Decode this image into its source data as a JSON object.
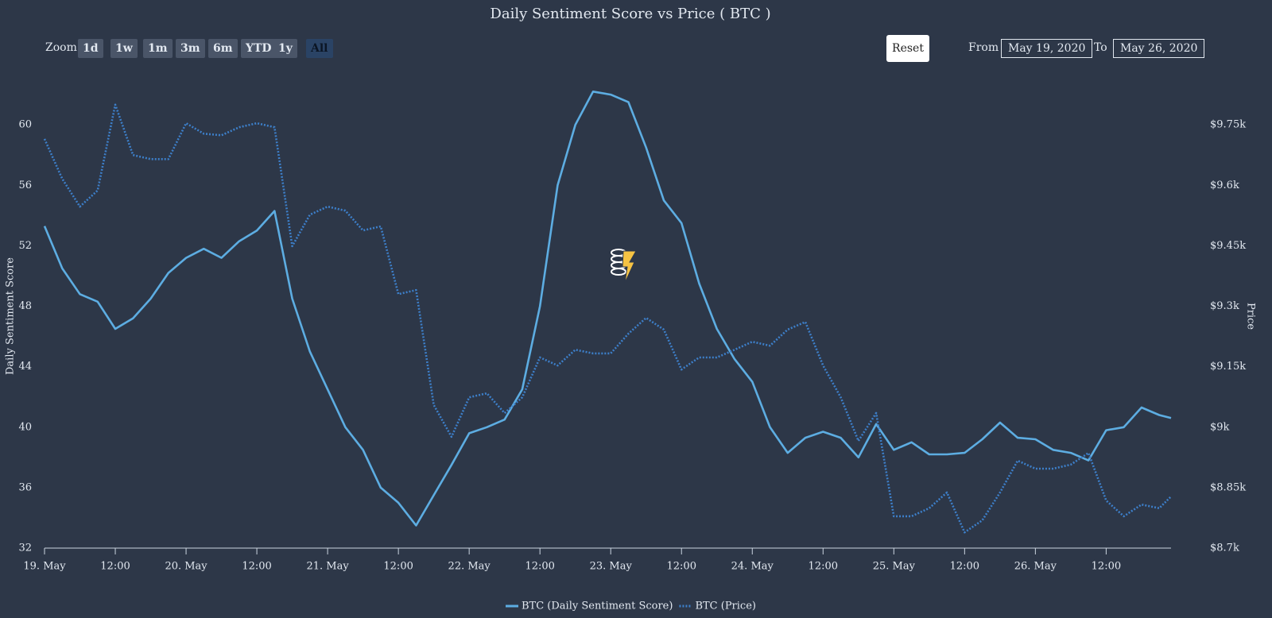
{
  "ui": {
    "zoom_label": "Zoom",
    "zoom_buttons": [
      "1d",
      "1w",
      "1m",
      "3m",
      "6m",
      "YTD",
      "1y",
      "All"
    ],
    "reset": "Reset",
    "from_label": "From",
    "from_value": "May 19, 2020",
    "to_label": "To",
    "to_value": "May 26, 2020"
  },
  "chart_data": {
    "type": "line",
    "title": "Daily Sentiment Score vs Price ( BTC )",
    "y_label": "Daily Sentiment Score",
    "y2_label": "Price",
    "x": [
      "2020-05-19T00:00",
      "2020-05-19T03:00",
      "2020-05-19T06:00",
      "2020-05-19T09:00",
      "2020-05-19T12:00",
      "2020-05-19T15:00",
      "2020-05-19T18:00",
      "2020-05-19T21:00",
      "2020-05-20T00:00",
      "2020-05-20T03:00",
      "2020-05-20T06:00",
      "2020-05-20T09:00",
      "2020-05-20T12:00",
      "2020-05-20T15:00",
      "2020-05-20T18:00",
      "2020-05-20T21:00",
      "2020-05-21T00:00",
      "2020-05-21T03:00",
      "2020-05-21T06:00",
      "2020-05-21T09:00",
      "2020-05-21T12:00",
      "2020-05-21T15:00",
      "2020-05-21T18:00",
      "2020-05-21T21:00",
      "2020-05-22T00:00",
      "2020-05-22T03:00",
      "2020-05-22T06:00",
      "2020-05-22T09:00",
      "2020-05-22T12:00",
      "2020-05-22T15:00",
      "2020-05-22T18:00",
      "2020-05-22T21:00",
      "2020-05-23T00:00",
      "2020-05-23T03:00",
      "2020-05-23T06:00",
      "2020-05-23T09:00",
      "2020-05-23T12:00",
      "2020-05-23T15:00",
      "2020-05-23T18:00",
      "2020-05-23T21:00",
      "2020-05-24T00:00",
      "2020-05-24T03:00",
      "2020-05-24T06:00",
      "2020-05-24T09:00",
      "2020-05-24T12:00",
      "2020-05-24T15:00",
      "2020-05-24T18:00",
      "2020-05-24T21:00",
      "2020-05-25T00:00",
      "2020-05-25T03:00",
      "2020-05-25T06:00",
      "2020-05-25T09:00",
      "2020-05-25T12:00",
      "2020-05-25T15:00",
      "2020-05-25T18:00",
      "2020-05-25T21:00",
      "2020-05-26T00:00",
      "2020-05-26T03:00",
      "2020-05-26T06:00",
      "2020-05-26T09:00",
      "2020-05-26T12:00",
      "2020-05-26T15:00",
      "2020-05-26T18:00",
      "2020-05-26T21:00",
      "2020-05-26T23:00"
    ],
    "xlim": [
      "2020-05-19T00:00",
      "2020-05-26T23:00"
    ],
    "xticks": [
      {
        "value": "2020-05-19T00:00",
        "label": "19. May"
      },
      {
        "value": "2020-05-19T12:00",
        "label": "12:00"
      },
      {
        "value": "2020-05-20T00:00",
        "label": "20. May"
      },
      {
        "value": "2020-05-20T12:00",
        "label": "12:00"
      },
      {
        "value": "2020-05-21T00:00",
        "label": "21. May"
      },
      {
        "value": "2020-05-21T12:00",
        "label": "12:00"
      },
      {
        "value": "2020-05-22T00:00",
        "label": "22. May"
      },
      {
        "value": "2020-05-22T12:00",
        "label": "12:00"
      },
      {
        "value": "2020-05-23T00:00",
        "label": "23. May"
      },
      {
        "value": "2020-05-23T12:00",
        "label": "12:00"
      },
      {
        "value": "2020-05-24T00:00",
        "label": "24. May"
      },
      {
        "value": "2020-05-24T12:00",
        "label": "12:00"
      },
      {
        "value": "2020-05-25T00:00",
        "label": "25. May"
      },
      {
        "value": "2020-05-25T12:00",
        "label": "12:00"
      },
      {
        "value": "2020-05-26T00:00",
        "label": "26. May"
      },
      {
        "value": "2020-05-26T12:00",
        "label": "12:00"
      }
    ],
    "ylim": [
      32,
      64
    ],
    "yticks": [
      32,
      36,
      40,
      44,
      48,
      52,
      56,
      60
    ],
    "y2lim": [
      8700,
      9900
    ],
    "y2ticks": [
      {
        "value": 8700,
        "label": "$8.7k"
      },
      {
        "value": 8850,
        "label": "$8.85k"
      },
      {
        "value": 9000,
        "label": "$9k"
      },
      {
        "value": 9150,
        "label": "$9.15k"
      },
      {
        "value": 9300,
        "label": "$9.3k"
      },
      {
        "value": 9450,
        "label": "$9.45k"
      },
      {
        "value": 9600,
        "label": "$9.6k"
      },
      {
        "value": 9750,
        "label": "$9.75k"
      }
    ],
    "legend": "bottom",
    "series": [
      {
        "name": "BTC (Daily Sentiment Score)",
        "color": "#5dade2",
        "dash": false,
        "values": [
          53.3,
          50.5,
          48.8,
          48.3,
          46.5,
          47.2,
          48.5,
          50.2,
          51.2,
          51.8,
          51.2,
          52.3,
          53,
          54.3,
          48.5,
          45,
          42.5,
          40,
          38.5,
          36,
          35,
          33.5,
          35.5,
          37.5,
          39.6,
          40,
          40.5,
          42.5,
          48,
          56,
          60,
          62.2,
          62,
          61.5,
          58.5,
          55,
          53.5,
          49.5,
          46.5,
          44.5,
          43,
          40,
          38.3,
          39.3,
          39.7,
          39.3,
          38,
          40.2,
          38.5,
          39,
          38.2,
          38.2,
          38.3,
          39.2,
          40.3,
          39.3,
          39.2,
          38.5,
          38.3,
          37.8,
          39.8,
          40,
          41.3,
          40.8,
          40.6
        ]
      },
      {
        "name": "BTC (Price)",
        "color": "#3d7fc9",
        "dash": true,
        "axis": "y2",
        "values": [
          9715,
          9616,
          9547,
          9587,
          9800,
          9675,
          9665,
          9665,
          9754,
          9728,
          9724,
          9744,
          9754,
          9744,
          9449,
          9527,
          9547,
          9537,
          9488,
          9498,
          9330,
          9340,
          9055,
          8976,
          9074,
          9084,
          9035,
          9074,
          9173,
          9153,
          9192,
          9183,
          9183,
          9232,
          9271,
          9242,
          9143,
          9173,
          9173,
          9192,
          9212,
          9202,
          9242,
          9261,
          9153,
          9074,
          8966,
          9035,
          8779,
          8779,
          8799,
          8838,
          8739,
          8769,
          8838,
          8917,
          8897,
          8897,
          8907,
          8936,
          8818,
          8779,
          8808,
          8799,
          8828
        ]
      }
    ]
  }
}
